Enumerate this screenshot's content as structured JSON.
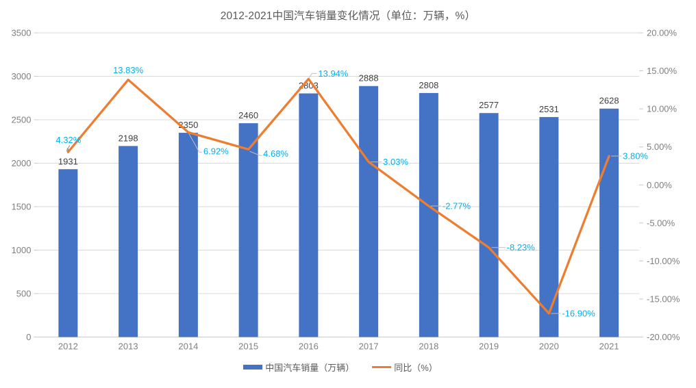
{
  "title": "2012-2021中国汽车销量变化情况（单位：万辆，%）",
  "colors": {
    "bar": "#4472C4",
    "line": "#ED7D31",
    "percent_label": "#00B0F0",
    "bar_label": "#404040",
    "axis_text": "#7F7F7F",
    "title_text": "#595959",
    "gridline": "#D9D9D9",
    "axis_line": "#C9C9C9",
    "leader": "#BFBFBF"
  },
  "legend": {
    "items": [
      {
        "label": "中国汽车销量（万辆）"
      },
      {
        "label": "同比（%）"
      }
    ]
  },
  "chart_data": {
    "type": "combo bar+line",
    "title": "2012-2021中国汽车销量变化情况（单位：万辆，%）",
    "categories": [
      "2012",
      "2013",
      "2014",
      "2015",
      "2016",
      "2017",
      "2018",
      "2019",
      "2020",
      "2021"
    ],
    "series": [
      {
        "name": "中国汽车销量（万辆）",
        "type": "bar",
        "axis": "left",
        "values": [
          1931,
          2198,
          2350,
          2460,
          2803,
          2888,
          2808,
          2577,
          2531,
          2628
        ],
        "value_labels": [
          "1931",
          "2198",
          "2350",
          "2460",
          "2803",
          "2888",
          "2808",
          "2577",
          "2531",
          "2628"
        ]
      },
      {
        "name": "同比（%）",
        "type": "line",
        "axis": "right",
        "values": [
          4.32,
          13.83,
          6.92,
          4.68,
          13.94,
          3.03,
          -2.77,
          -8.23,
          -16.9,
          3.8
        ],
        "point_labels": [
          "4.32%",
          "13.83%",
          "6.92%",
          "4.68%",
          "13.94%",
          "3.03%",
          "-2.77%",
          "-8.23%",
          "-16.90%",
          "3.80%"
        ]
      }
    ],
    "left_axis": {
      "min": 0,
      "max": 3500,
      "step": 500,
      "tick_labels": [
        "0",
        "500",
        "1000",
        "1500",
        "2000",
        "2500",
        "3000",
        "3500"
      ]
    },
    "right_axis": {
      "min": -20,
      "max": 20,
      "step": 5,
      "tick_labels": [
        "20.00%",
        "15.00%",
        "10.00%",
        "5.00%",
        "0.00%",
        "-5.00%",
        "-10.00%",
        "-15.00%",
        "-20.00%"
      ]
    },
    "grid": true,
    "legend_position": "bottom"
  }
}
